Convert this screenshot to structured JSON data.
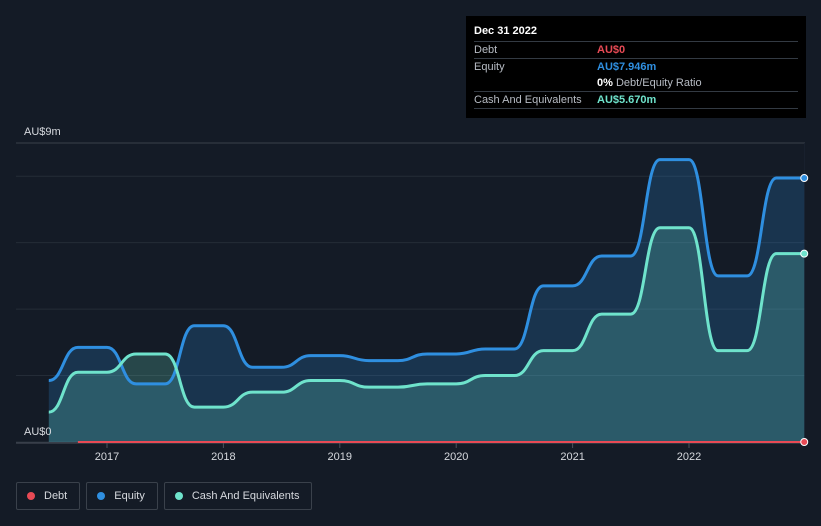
{
  "tooltip": {
    "date": "Dec 31 2022",
    "debt_label": "Debt",
    "debt_value": "AU$0",
    "equity_label": "Equity",
    "equity_value": "AU$7.946m",
    "ratio_value": "0%",
    "ratio_label": "Debt/Equity Ratio",
    "cash_label": "Cash And Equivalents",
    "cash_value": "AU$5.670m"
  },
  "legend": {
    "debt": "Debt",
    "equity": "Equity",
    "cash": "Cash And Equivalents"
  },
  "colors": {
    "debt": "#e84a55",
    "equity": "#2f8fe0",
    "cash": "#6fe3cc",
    "background": "#141b26"
  },
  "chart_data": {
    "type": "area",
    "title": "",
    "xlabel": "",
    "ylabel": "",
    "y_top_label": "AU$9m",
    "y_bottom_label": "AU$0",
    "ylim": [
      0,
      9
    ],
    "x_range": [
      2016.5,
      2022.99
    ],
    "x_ticks": [
      2017,
      2018,
      2019,
      2020,
      2021,
      2022
    ],
    "x_tick_labels": [
      "2017",
      "2018",
      "2019",
      "2020",
      "2021",
      "2022"
    ],
    "series": [
      {
        "name": "Equity",
        "color": "#2f8fe0",
        "x": [
          2016.5,
          2016.75,
          2017.0,
          2017.25,
          2017.5,
          2017.75,
          2018.0,
          2018.25,
          2018.5,
          2018.75,
          2019.0,
          2019.25,
          2019.5,
          2019.75,
          2020.0,
          2020.25,
          2020.5,
          2020.75,
          2021.0,
          2021.25,
          2021.5,
          2021.75,
          2022.0,
          2022.25,
          2022.5,
          2022.75,
          2022.99
        ],
        "values": [
          1.85,
          2.85,
          2.85,
          1.75,
          1.75,
          3.5,
          3.5,
          2.25,
          2.25,
          2.6,
          2.6,
          2.45,
          2.45,
          2.65,
          2.65,
          2.8,
          2.8,
          4.7,
          4.7,
          5.6,
          5.6,
          8.5,
          8.5,
          5.0,
          5.0,
          7.946,
          7.946
        ]
      },
      {
        "name": "Cash And Equivalents",
        "color": "#6fe3cc",
        "x": [
          2016.5,
          2016.75,
          2017.0,
          2017.25,
          2017.5,
          2017.75,
          2018.0,
          2018.25,
          2018.5,
          2018.75,
          2019.0,
          2019.25,
          2019.5,
          2019.75,
          2020.0,
          2020.25,
          2020.5,
          2020.75,
          2021.0,
          2021.25,
          2021.5,
          2021.75,
          2022.0,
          2022.25,
          2022.5,
          2022.75,
          2022.99
        ],
        "values": [
          0.9,
          2.1,
          2.1,
          2.65,
          2.65,
          1.05,
          1.05,
          1.5,
          1.5,
          1.85,
          1.85,
          1.65,
          1.65,
          1.75,
          1.75,
          2.0,
          2.0,
          2.75,
          2.75,
          3.85,
          3.85,
          6.45,
          6.45,
          2.75,
          2.75,
          5.67,
          5.67
        ]
      },
      {
        "name": "Debt",
        "color": "#e84a55",
        "x": [
          2016.75,
          2022.99
        ],
        "values": [
          0,
          0
        ]
      }
    ]
  }
}
